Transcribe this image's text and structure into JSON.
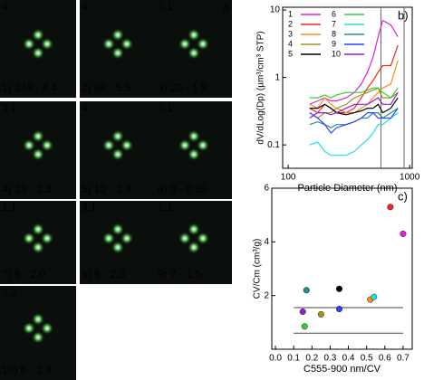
{
  "panel_a": {
    "label": "a",
    "tiles": [
      {
        "number": "4",
        "number_color": "#9a9a9a",
        "caption": "1) 149 - 4.4",
        "caption_color": "#e040e0"
      },
      {
        "number": "4",
        "number_color": "#9a9a9a",
        "caption": "2) 68 - 5.5",
        "caption_color": "#ff2020"
      },
      {
        "number": "3.1",
        "number_color": "#3040ff",
        "caption": "3) 20 - 1.9",
        "caption_color": "#ff8c1a"
      },
      {
        "number": "3.1",
        "number_color": "#3040ff",
        "caption": "4) 13 - 1.3",
        "caption_color": "#a09020"
      },
      {
        "number": "4",
        "number_color": "#9a9a9a",
        "caption": "5) 10 - 2.4",
        "caption_color": "#ffffff"
      },
      {
        "number": "3.1",
        "number_color": "#3040ff",
        "caption": "6) 9 - 0.85",
        "caption_color": "#30ff30"
      },
      {
        "number": "1.1",
        "number_color": "#9a9a9a",
        "caption": "7) 9 - 2.0",
        "caption_color": "#20e0e0"
      },
      {
        "number": "3.1",
        "number_color": "#3040ff",
        "caption": "8) 9 - 2.3",
        "caption_color": "#20a0a0"
      },
      {
        "number": "1.1",
        "number_color": "#3040ff",
        "caption": "9) 7 - 1.5",
        "caption_color": "#3040ff"
      },
      {
        "number": "3.2",
        "number_color": "#3040ff",
        "caption": "10) 6 - 1.4",
        "caption_color": "#3040ff"
      }
    ]
  },
  "chart_data": [
    {
      "type": "line",
      "label": "b)",
      "xlabel": "Particle Diameter (nm)",
      "ylabel": "dV/dLog(Dp) (µm³/cm³ STP)",
      "log_x": true,
      "log_y": true,
      "xlim": [
        90,
        1050
      ],
      "ylim": [
        0.045,
        11
      ],
      "xticks": [
        100,
        1000
      ],
      "yticks": [
        0.1,
        1,
        10
      ],
      "vlines": [
        580,
        900
      ],
      "x": [
        150,
        175,
        200,
        225,
        250,
        300,
        350,
        400,
        450,
        500,
        550,
        600,
        700,
        800
      ],
      "series": [
        {
          "name": "1",
          "color": "#e020e0",
          "values": [
            0.4,
            0.45,
            0.5,
            0.45,
            0.45,
            0.5,
            0.6,
            0.8,
            1.2,
            2,
            4,
            7,
            6,
            4
          ]
        },
        {
          "name": "2",
          "color": "#ff2020",
          "values": [
            0.35,
            0.3,
            0.4,
            0.35,
            0.3,
            0.3,
            0.35,
            0.5,
            0.7,
            0.9,
            1.2,
            1.5,
            1.5,
            3
          ]
        },
        {
          "name": "3",
          "color": "#ff8c1a",
          "values": [
            0.4,
            0.35,
            0.5,
            0.4,
            0.35,
            0.3,
            0.3,
            0.35,
            0.4,
            0.5,
            0.6,
            0.7,
            0.8,
            1.8
          ]
        },
        {
          "name": "4",
          "color": "#a09020",
          "values": [
            0.3,
            0.25,
            0.3,
            0.3,
            0.35,
            0.4,
            0.5,
            0.55,
            0.6,
            0.65,
            0.7,
            0.5,
            0.5,
            0.6
          ]
        },
        {
          "name": "5",
          "color": "#000000",
          "values": [
            0.35,
            0.35,
            0.4,
            0.35,
            0.3,
            0.28,
            0.3,
            0.32,
            0.35,
            0.35,
            0.4,
            0.3,
            0.35,
            0.5
          ]
        },
        {
          "name": "6",
          "color": "#30d030",
          "values": [
            0.5,
            0.5,
            0.55,
            0.5,
            0.55,
            0.6,
            0.6,
            0.6,
            0.65,
            0.7,
            0.7,
            0.6,
            0.5,
            0.7
          ]
        },
        {
          "name": "7",
          "color": "#20e0e0",
          "values": [
            0.1,
            0.11,
            0.08,
            0.07,
            0.07,
            0.07,
            0.08,
            0.1,
            0.12,
            0.15,
            0.2,
            0.2,
            0.25,
            0.3
          ]
        },
        {
          "name": "8",
          "color": "#209090",
          "values": [
            0.2,
            0.22,
            0.2,
            0.18,
            0.2,
            0.2,
            0.22,
            0.25,
            0.25,
            0.3,
            0.3,
            0.25,
            0.3,
            0.35
          ]
        },
        {
          "name": "9",
          "color": "#3040ff",
          "values": [
            0.3,
            0.25,
            0.2,
            0.15,
            0.18,
            0.2,
            0.22,
            0.25,
            0.3,
            0.3,
            0.25,
            0.25,
            0.25,
            0.35
          ]
        },
        {
          "name": "10",
          "color": "#9020d0",
          "values": [
            0.25,
            0.3,
            0.3,
            0.28,
            0.3,
            0.35,
            0.4,
            0.4,
            0.4,
            0.45,
            0.5,
            0.4,
            0.4,
            0.6
          ]
        }
      ]
    },
    {
      "type": "scatter",
      "label": "c)",
      "xlabel": "C555-900 nm/CV",
      "ylabel": "CV/Cm (cm³/g)",
      "xlim": [
        -0.02,
        0.75
      ],
      "ylim": [
        0,
        6
      ],
      "xticks": [
        {
          "value": 0,
          "label": "0.0"
        },
        0.1,
        0.2,
        0.3,
        0.4,
        0.5,
        0.6,
        0.7
      ],
      "yticks": [
        2,
        4,
        6
      ],
      "hlines": [
        1.55,
        0.6
      ],
      "hline_x": [
        0.1,
        0.7
      ],
      "x": [
        0.7,
        0.63,
        0.52,
        0.54,
        0.35,
        0.17,
        0.15,
        0.25,
        0.35,
        0.16
      ],
      "values": [
        4.3,
        5.3,
        1.85,
        1.95,
        2.25,
        2.2,
        1.4,
        1.3,
        1.5,
        0.85
      ],
      "colors": [
        "#e020e0",
        "#ff2020",
        "#ff8c1a",
        "#20e0e0",
        "#000000",
        "#209090",
        "#9020d0",
        "#a09020",
        "#3040ff",
        "#30d030"
      ]
    }
  ]
}
